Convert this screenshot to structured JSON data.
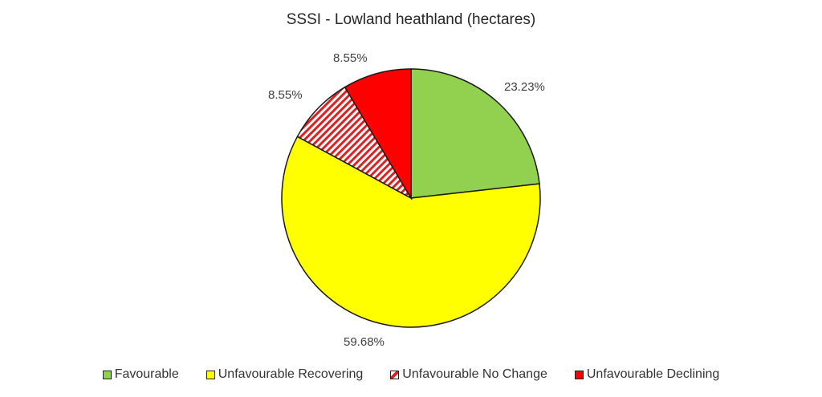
{
  "chart_data": {
    "type": "pie",
    "title": "SSSI - Lowland heathland (hectares)",
    "categories": [
      "Favourable",
      "Unfavourable Recovering",
      "Unfavourable No Change",
      "Unfavourable Declining"
    ],
    "values": [
      23.23,
      59.68,
      8.55,
      8.55
    ],
    "value_labels": [
      "23.23%",
      "59.68%",
      "8.55%",
      "8.55%"
    ],
    "colors": [
      "#92D050",
      "#FFFF00",
      "#FF0000 hatched",
      "#FF0000"
    ],
    "start_angle": "12 o'clock, clockwise",
    "legend_position": "bottom"
  },
  "labels": {
    "favourable": "23.23%",
    "recovering": "59.68%",
    "no_change": "8.55%",
    "declining": "8.55%"
  },
  "legend": [
    {
      "label": "Favourable",
      "color": "#92D050"
    },
    {
      "label": "Unfavourable Recovering",
      "color": "#FFFF00"
    },
    {
      "label": "Unfavourable No Change",
      "color": "#FF0000"
    },
    {
      "label": "Unfavourable Declining",
      "color": "#FF0000"
    }
  ]
}
